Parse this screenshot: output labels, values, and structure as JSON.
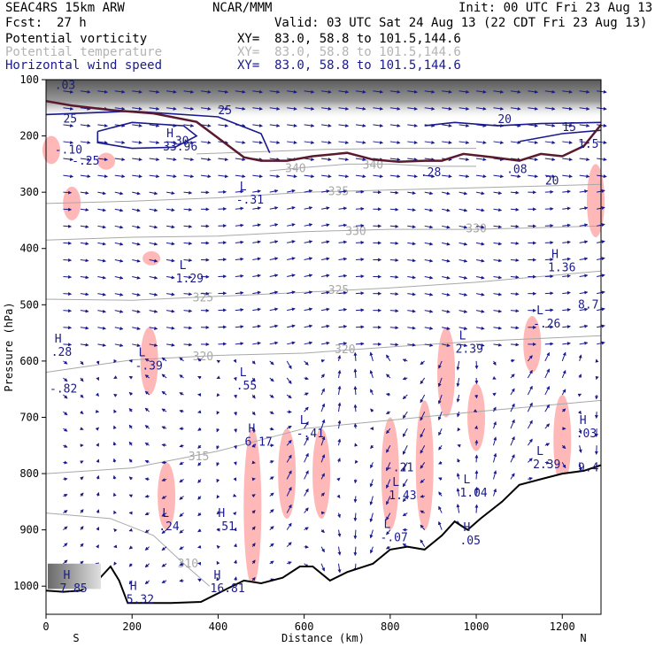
{
  "header": {
    "model": "SEAC4RS 15km ARW",
    "org": "NCAR/MMM",
    "init": "Init: 00 UTC Fri 23 Aug 13",
    "fcst_label": "Fcst:",
    "fcst_value": "27 h",
    "valid": "Valid: 03 UTC Sat 24 Aug 13 (22 CDT Fri 23 Aug 13)"
  },
  "fields": [
    {
      "name": "Potential vorticity",
      "xy": "XY=  83.0, 58.8 to 101.5,144.6",
      "color": "#000000"
    },
    {
      "name": "Potential temperature",
      "xy": "XY=  83.0, 58.8 to 101.5,144.6",
      "color": "#b4b4b4"
    },
    {
      "name": "Horizontal wind speed",
      "xy": "XY=  83.0, 58.8 to 101.5,144.6",
      "color": "#1a1a8c"
    }
  ],
  "colors": {
    "pv_positive": "#ffb8b8",
    "theta": "#a8a8a8",
    "wind": "#1a1a8c",
    "terrain": "#000000",
    "pv_contour": "#5a1a2e",
    "stratosphere_shade": "#808080"
  },
  "chart_data": {
    "type": "cross-section",
    "title": "",
    "xlabel": "Distance (km)",
    "ylabel": "Pressure (hPa)",
    "x_ticks": [
      "0",
      "200",
      "400",
      "600",
      "800",
      "1000",
      "1200"
    ],
    "y_ticks": [
      "100",
      "200",
      "300",
      "400",
      "500",
      "600",
      "700",
      "800",
      "900",
      "1000"
    ],
    "xlim": [
      0,
      1290
    ],
    "ylim": [
      1050,
      100
    ],
    "y_scale": "pressure",
    "end_labels": {
      "left": "S",
      "right": "N"
    },
    "theta_contours": [
      {
        "label": "335",
        "points": [
          [
            0,
            320
          ],
          [
            200,
            316
          ],
          [
            400,
            310
          ],
          [
            600,
            300
          ],
          [
            800,
            296
          ],
          [
            1000,
            292
          ],
          [
            1290,
            286
          ]
        ],
        "labels_at": [
          [
            680,
            299
          ]
        ]
      },
      {
        "label": "330",
        "points": [
          [
            0,
            385
          ],
          [
            200,
            380
          ],
          [
            400,
            378
          ],
          [
            600,
            370
          ],
          [
            800,
            366
          ],
          [
            1000,
            366
          ],
          [
            1290,
            360
          ]
        ],
        "labels_at": [
          [
            720,
            370
          ],
          [
            1000,
            365
          ]
        ]
      },
      {
        "label": "325",
        "points": [
          [
            0,
            490
          ],
          [
            200,
            492
          ],
          [
            400,
            485
          ],
          [
            600,
            478
          ],
          [
            800,
            470
          ],
          [
            1000,
            460
          ],
          [
            1290,
            440
          ]
        ],
        "labels_at": [
          [
            365,
            488
          ],
          [
            680,
            474
          ]
        ]
      },
      {
        "label": "320",
        "points": [
          [
            0,
            620
          ],
          [
            200,
            598
          ],
          [
            400,
            590
          ],
          [
            600,
            586
          ],
          [
            800,
            575
          ],
          [
            1000,
            565
          ],
          [
            1290,
            555
          ]
        ],
        "labels_at": [
          [
            365,
            592
          ],
          [
            695,
            580
          ]
        ]
      },
      {
        "label": "315",
        "points": [
          [
            0,
            800
          ],
          [
            200,
            790
          ],
          [
            400,
            760
          ],
          [
            600,
            720
          ],
          [
            800,
            705
          ],
          [
            1000,
            690
          ],
          [
            1290,
            670
          ]
        ],
        "labels_at": [
          [
            355,
            770
          ]
        ]
      },
      {
        "label": "310",
        "points": [
          [
            0,
            870
          ],
          [
            150,
            880
          ],
          [
            250,
            910
          ],
          [
            320,
            960
          ],
          [
            380,
            1000
          ]
        ],
        "labels_at": [
          [
            330,
            960
          ]
        ]
      },
      {
        "label": "340",
        "points": [
          [
            520,
            262
          ],
          [
            600,
            256
          ],
          [
            700,
            250
          ],
          [
            800,
            250
          ],
          [
            900,
            254
          ],
          [
            1000,
            254
          ]
        ],
        "labels_at": [
          [
            580,
            258
          ],
          [
            760,
            252
          ]
        ]
      },
      {
        "label": "345",
        "points": [
          [
            350,
            232
          ],
          [
            500,
            228
          ],
          [
            650,
            224
          ],
          [
            800,
            222
          ],
          [
            1000,
            222
          ]
        ],
        "labels_at": []
      }
    ],
    "wind_speed_contours": [
      {
        "label": "25",
        "points": [
          [
            0,
            162
          ],
          [
            200,
            156
          ],
          [
            400,
            166
          ],
          [
            500,
            196
          ],
          [
            520,
            230
          ]
        ]
      },
      {
        "label": "30",
        "points": [
          [
            120,
            192
          ],
          [
            200,
            176
          ],
          [
            320,
            182
          ],
          [
            350,
            200
          ],
          [
            300,
            220
          ],
          [
            200,
            222
          ],
          [
            120,
            212
          ],
          [
            120,
            192
          ]
        ]
      },
      {
        "label": "20",
        "points": [
          [
            880,
            182
          ],
          [
            950,
            176
          ],
          [
            1050,
            182
          ],
          [
            1150,
            178
          ],
          [
            1290,
            176
          ]
        ]
      },
      {
        "label": "15",
        "points": [
          [
            1100,
            210
          ],
          [
            1200,
            196
          ],
          [
            1290,
            190
          ]
        ]
      }
    ],
    "pv_contour_line": [
      [
        0,
        138
      ],
      [
        60,
        146
      ],
      [
        150,
        154
      ],
      [
        250,
        160
      ],
      [
        350,
        175
      ],
      [
        420,
        215
      ],
      [
        460,
        238
      ],
      [
        500,
        244
      ],
      [
        560,
        244
      ],
      [
        620,
        236
      ],
      [
        700,
        230
      ],
      [
        760,
        242
      ],
      [
        820,
        246
      ],
      [
        880,
        244
      ],
      [
        920,
        244
      ],
      [
        970,
        232
      ],
      [
        1040,
        238
      ],
      [
        1100,
        244
      ],
      [
        1150,
        232
      ],
      [
        1200,
        236
      ],
      [
        1250,
        218
      ],
      [
        1290,
        180
      ]
    ],
    "terrain": [
      [
        0,
        1008
      ],
      [
        40,
        1010
      ],
      [
        80,
        1008
      ],
      [
        120,
        990
      ],
      [
        150,
        965
      ],
      [
        170,
        990
      ],
      [
        190,
        1030
      ],
      [
        230,
        1030
      ],
      [
        290,
        1030
      ],
      [
        360,
        1028
      ],
      [
        420,
        1005
      ],
      [
        460,
        990
      ],
      [
        500,
        995
      ],
      [
        550,
        985
      ],
      [
        590,
        965
      ],
      [
        620,
        965
      ],
      [
        660,
        990
      ],
      [
        700,
        975
      ],
      [
        760,
        960
      ],
      [
        800,
        935
      ],
      [
        840,
        930
      ],
      [
        880,
        935
      ],
      [
        920,
        910
      ],
      [
        950,
        885
      ],
      [
        980,
        900
      ],
      [
        1010,
        880
      ],
      [
        1060,
        850
      ],
      [
        1100,
        820
      ],
      [
        1150,
        810
      ],
      [
        1200,
        800
      ],
      [
        1250,
        795
      ],
      [
        1290,
        785
      ]
    ],
    "pv_positive_regions": [
      {
        "x": 0,
        "p": [
          200,
          250
        ]
      },
      {
        "x": 60,
        "p": [
          290,
          350
        ]
      },
      {
        "x": 140,
        "p": [
          230,
          260
        ]
      },
      {
        "x": 245,
        "p": [
          405,
          430
        ]
      },
      {
        "x": 240,
        "p": [
          540,
          660
        ]
      },
      {
        "x": 280,
        "p": [
          780,
          900
        ]
      },
      {
        "x": 480,
        "p": [
          720,
          1000
        ]
      },
      {
        "x": 560,
        "p": [
          720,
          880
        ]
      },
      {
        "x": 640,
        "p": [
          720,
          880
        ]
      },
      {
        "x": 800,
        "p": [
          700,
          900
        ]
      },
      {
        "x": 880,
        "p": [
          670,
          900
        ]
      },
      {
        "x": 930,
        "p": [
          540,
          700
        ]
      },
      {
        "x": 1000,
        "p": [
          640,
          760
        ]
      },
      {
        "x": 1130,
        "p": [
          520,
          620
        ]
      },
      {
        "x": 1200,
        "p": [
          660,
          820
        ]
      },
      {
        "x": 1290,
        "p": [
          250,
          380
        ]
      }
    ],
    "extrema_labels": [
      {
        "type": "H",
        "value": "33.96",
        "x": 280,
        "p": 205
      },
      {
        "type": "L",
        "value": "-.31",
        "x": 450,
        "p": 300
      },
      {
        "type": "L",
        "value": "1.29",
        "x": 310,
        "p": 440
      },
      {
        "type": "H",
        "value": ".28",
        "x": 20,
        "p": 570
      },
      {
        "type": "L",
        "value": "-.39",
        "x": 215,
        "p": 595
      },
      {
        "type": "L",
        "value": ".55",
        "x": 450,
        "p": 630
      },
      {
        "type": "H",
        "value": "6.17",
        "x": 470,
        "p": 730
      },
      {
        "type": "L",
        "value": "-.41",
        "x": 590,
        "p": 715
      },
      {
        "type": "L",
        "value": "2.39",
        "x": 960,
        "p": 565
      },
      {
        "type": "L",
        "value": "-.26",
        "x": 1140,
        "p": 520
      },
      {
        "type": "H",
        "value": "1.36",
        "x": 1175,
        "p": 420
      },
      {
        "type": "H",
        "value": ".03",
        "x": 1240,
        "p": 715
      },
      {
        "type": "L",
        "value": "2.39",
        "x": 1140,
        "p": 770
      },
      {
        "type": "L",
        "value": "1.04",
        "x": 970,
        "p": 820
      },
      {
        "type": "L",
        "value": "1.43",
        "x": 805,
        "p": 825
      },
      {
        "type": "H",
        "value": ".51",
        "x": 400,
        "p": 880
      },
      {
        "type": "L",
        "value": ".24",
        "x": 270,
        "p": 880
      },
      {
        "type": "L",
        "value": "-.07",
        "x": 785,
        "p": 900
      },
      {
        "type": "H",
        "value": ".05",
        "x": 970,
        "p": 905
      },
      {
        "type": "H",
        "value": "5.32",
        "x": 195,
        "p": 1010
      },
      {
        "type": "H",
        "value": "16.81",
        "x": 390,
        "p": 990
      },
      {
        "type": "H",
        "value": "7.85",
        "x": 40,
        "p": 990
      }
    ],
    "misc_labels": [
      {
        "text": "-.21",
        "x": 790,
        "p": 790
      },
      {
        "text": "20",
        "x": 1160,
        "p": 280
      },
      {
        "text": "8.7",
        "x": 1250,
        "p": 500
      },
      {
        "text": "9.4",
        "x": 1250,
        "p": 790
      },
      {
        "text": "25",
        "x": 40,
        "p": 170
      },
      {
        "text": "-.82",
        "x": 0,
        "p": 650
      },
      {
        "text": ".08",
        "x": 1070,
        "p": 260
      },
      {
        "text": "1.5",
        "x": 1250,
        "p": 215
      },
      {
        "text": ".28",
        "x": 870,
        "p": 265
      },
      {
        "text": "-.10",
        "x": 20,
        "p": 225
      },
      {
        "text": "-.25",
        "x": 60,
        "p": 245
      },
      {
        "text": ".03",
        "x": 20,
        "p": 110
      }
    ]
  }
}
